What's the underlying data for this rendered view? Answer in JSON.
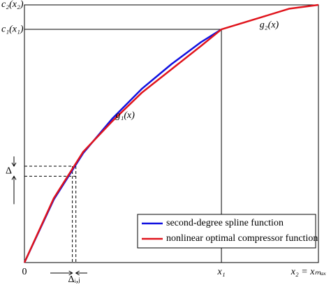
{
  "chart_data": {
    "type": "line",
    "x": [
      0,
      0.1,
      0.2,
      0.3,
      0.4,
      0.5,
      0.6,
      0.67,
      0.8,
      0.9,
      1
    ],
    "series": [
      {
        "name": "second-degree spline function",
        "color": "#1010e0",
        "values": [
          0,
          0.245,
          0.425,
          0.56,
          0.675,
          0.77,
          0.855,
          0.905,
          null,
          null,
          null
        ]
      },
      {
        "name": "nonlinear optimal compressor function",
        "color": "#e0141c",
        "values": [
          0,
          0.25,
          0.43,
          0.55,
          0.66,
          0.75,
          0.84,
          0.905,
          0.95,
          0.985,
          1
        ]
      }
    ],
    "xlim": [
      0,
      1
    ],
    "ylim": [
      0,
      1
    ],
    "xticks": [
      0,
      {
        "value": 0.67,
        "label": "x₁"
      },
      {
        "value": 1,
        "label": "x₂ = xₘₐₓ"
      }
    ],
    "yticks": [
      {
        "value": 0.905,
        "label": "c₁(x₁)"
      },
      {
        "value": 1,
        "label": "c₂(x₂)"
      }
    ],
    "annotations": [
      {
        "text": "g₁(x)",
        "x": 0.31,
        "y": 0.57
      },
      {
        "text": "g₂(x)",
        "x": 0.8,
        "y": 0.92
      }
    ],
    "delta": {
      "label": "Δ",
      "y": [
        0.335,
        0.374
      ]
    },
    "delta_ij": {
      "label": "Δᵢ,ⱼ",
      "x": [
        0.163,
        0.175
      ]
    },
    "legend": "lower right"
  }
}
